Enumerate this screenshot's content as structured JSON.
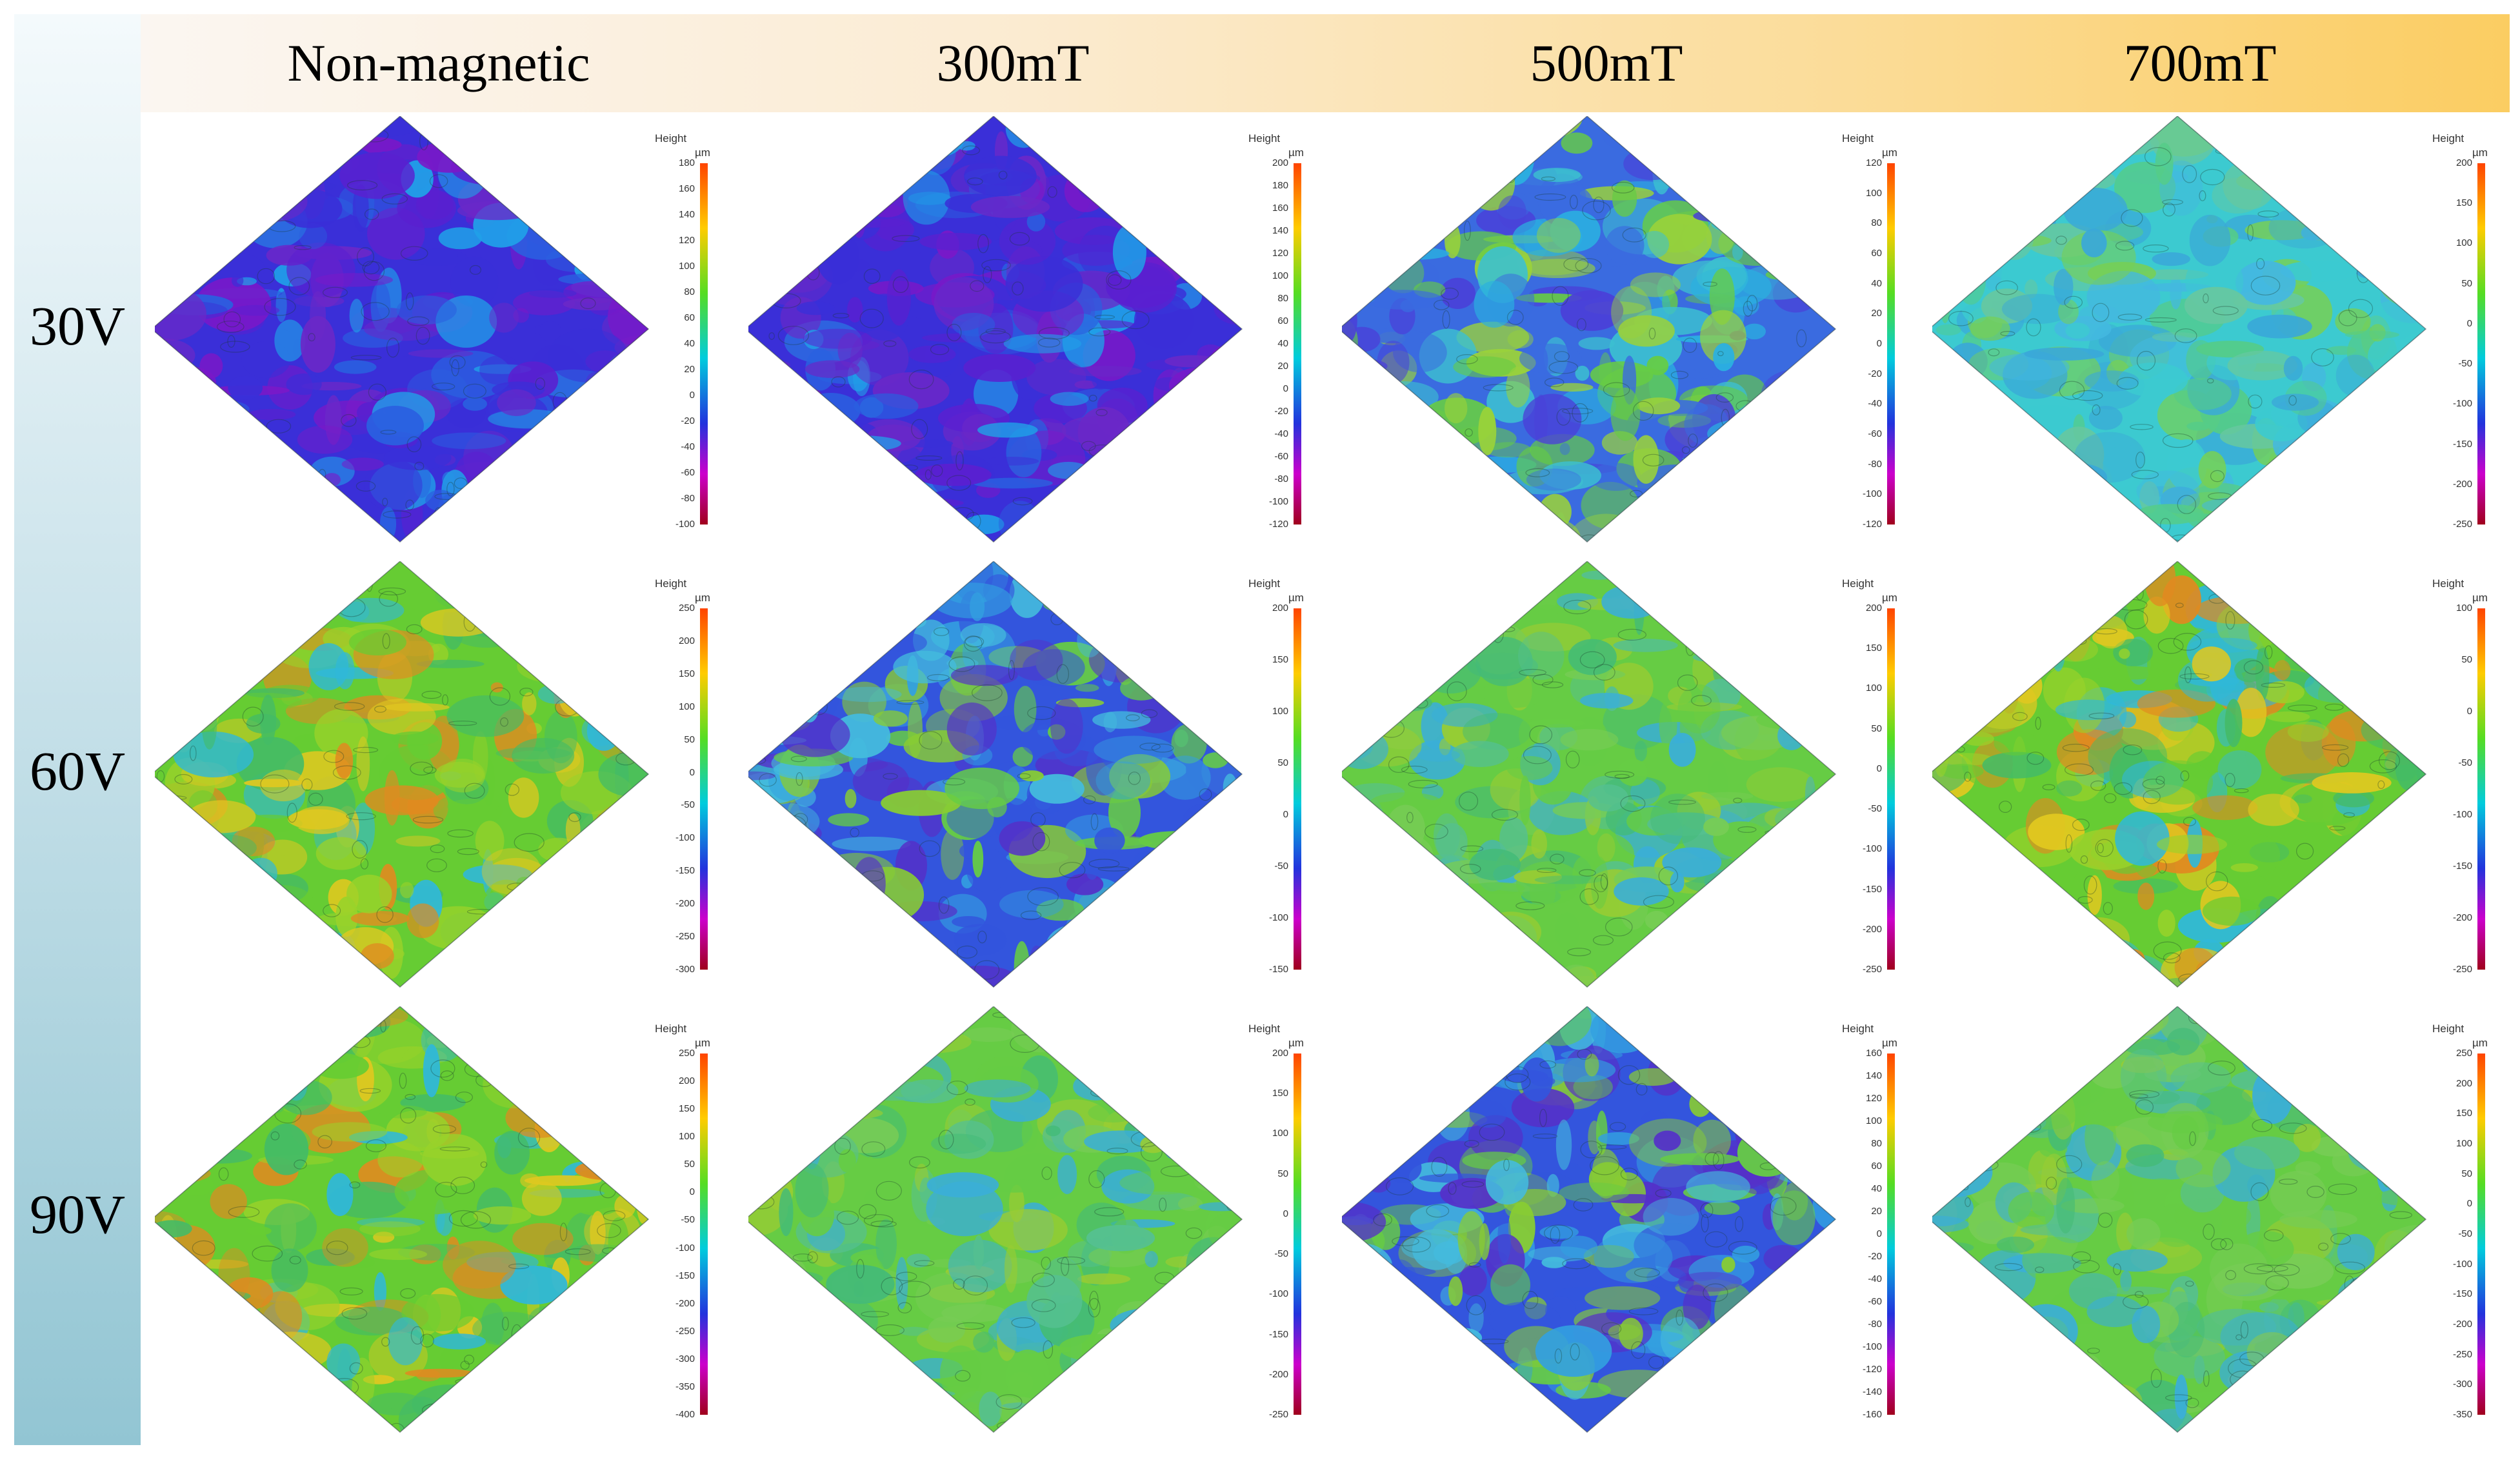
{
  "columns": [
    "Non-magnetic",
    "300mT",
    "500mT",
    "700mT"
  ],
  "rows": [
    "30V",
    "60V",
    "90V"
  ],
  "height_label": "Height",
  "unit_label": "µm",
  "panels": [
    [
      {
        "ticks": [
          "180",
          "160",
          "140",
          "120",
          "100",
          "80",
          "60",
          "40",
          "20",
          "0",
          "-20",
          "-40",
          "-60",
          "-80",
          "-100"
        ],
        "dominant": "blue-purple"
      },
      {
        "ticks": [
          "200",
          "180",
          "160",
          "140",
          "120",
          "100",
          "80",
          "60",
          "40",
          "20",
          "0",
          "-20",
          "-40",
          "-60",
          "-80",
          "-100",
          "-120"
        ],
        "dominant": "blue-purple"
      },
      {
        "ticks": [
          "120",
          "100",
          "80",
          "60",
          "40",
          "20",
          "0",
          "-20",
          "-40",
          "-60",
          "-80",
          "-100",
          "-120"
        ],
        "dominant": "mixed"
      },
      {
        "ticks": [
          "200",
          "150",
          "100",
          "50",
          "0",
          "-50",
          "-100",
          "-150",
          "-200",
          "-250"
        ],
        "dominant": "cyan-green"
      }
    ],
    [
      {
        "ticks": [
          "250",
          "200",
          "150",
          "100",
          "50",
          "0",
          "-50",
          "-100",
          "-150",
          "-200",
          "-250",
          "-300"
        ],
        "dominant": "green-yellow"
      },
      {
        "ticks": [
          "200",
          "150",
          "100",
          "50",
          "0",
          "-50",
          "-100",
          "-150"
        ],
        "dominant": "blue-green"
      },
      {
        "ticks": [
          "200",
          "150",
          "100",
          "50",
          "0",
          "-50",
          "-100",
          "-150",
          "-200",
          "-250"
        ],
        "dominant": "green"
      },
      {
        "ticks": [
          "100",
          "50",
          "0",
          "-50",
          "-100",
          "-150",
          "-200",
          "-250"
        ],
        "dominant": "green-yellow"
      }
    ],
    [
      {
        "ticks": [
          "250",
          "200",
          "150",
          "100",
          "50",
          "0",
          "-50",
          "-100",
          "-150",
          "-200",
          "-250",
          "-300",
          "-350",
          "-400"
        ],
        "dominant": "green-yellow"
      },
      {
        "ticks": [
          "200",
          "150",
          "100",
          "50",
          "0",
          "-50",
          "-100",
          "-150",
          "-200",
          "-250"
        ],
        "dominant": "green"
      },
      {
        "ticks": [
          "160",
          "140",
          "120",
          "100",
          "80",
          "60",
          "40",
          "20",
          "0",
          "-20",
          "-40",
          "-60",
          "-80",
          "-100",
          "-120",
          "-140",
          "-160"
        ],
        "dominant": "blue-green"
      },
      {
        "ticks": [
          "250",
          "200",
          "150",
          "100",
          "50",
          "0",
          "-50",
          "-100",
          "-150",
          "-200",
          "-250",
          "-300",
          "-350"
        ],
        "dominant": "green"
      }
    ]
  ],
  "colors": {
    "header_start": "#fbf6f1",
    "header_end": "#fbcd62",
    "sidebar_top": "#f4fafc",
    "sidebar_bottom": "#92c5d3"
  }
}
